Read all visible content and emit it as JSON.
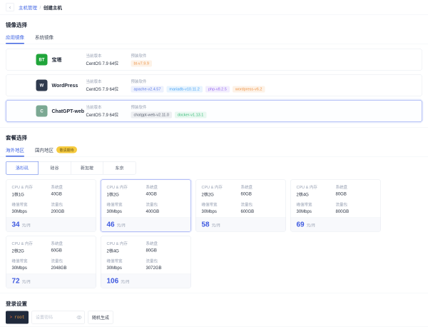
{
  "colors": {
    "accent": "#4468e4",
    "price": "#3f5ae0",
    "selected": "#7388ef"
  },
  "badge_colors": {
    "orange": {
      "bg": "#fdf2e7",
      "fg": "#ee9549"
    },
    "indigo": {
      "bg": "#edf1fd",
      "fg": "#5e7ce8"
    },
    "blue": {
      "bg": "#e8f4fe",
      "fg": "#47a3f5"
    },
    "purple": {
      "bg": "#f2edfd",
      "fg": "#9a6ef0"
    },
    "gray": {
      "bg": "#edeff2",
      "fg": "#596070"
    },
    "green": {
      "bg": "#e8f8f0",
      "fg": "#3dbd7d"
    },
    "yellow": {
      "bg": "#f6cb3f",
      "fg": "#6d5716"
    }
  },
  "breadcrumb": {
    "back_icon": "‹",
    "parent": "主机管理",
    "separator": "/",
    "current": "创建主机"
  },
  "image_section": {
    "title": "镜像选择",
    "tabs": [
      {
        "key": "app-image",
        "label": "应用镜像",
        "active": true
      },
      {
        "key": "system-image",
        "label": "系统镜像",
        "active": false
      }
    ],
    "labels": {
      "version": "当前版本",
      "software": "预装软件"
    },
    "images": [
      {
        "key": "baota",
        "name": "宝塔",
        "icon_name": "baota-icon",
        "icon_text": "BT",
        "icon_bg": "#20a53a",
        "icon_fg": "#ffffff",
        "version": "CentOS 7.9 64位",
        "selected": false,
        "badges": [
          {
            "text": "bt-v7.9.9",
            "color": "orange"
          }
        ]
      },
      {
        "key": "wordpress",
        "name": "WordPress",
        "icon_name": "wordpress-icon",
        "icon_text": "W",
        "icon_bg": "#2f3a4d",
        "icon_fg": "#ffffff",
        "version": "CentOS 7.9 64位",
        "selected": false,
        "badges": [
          {
            "text": "apache-v2.4.57",
            "color": "indigo"
          },
          {
            "text": "mariadb-v10.11.2",
            "color": "blue"
          },
          {
            "text": "php-v8.2.5",
            "color": "purple"
          },
          {
            "text": "wordpress-v6.2",
            "color": "orange"
          }
        ]
      },
      {
        "key": "chatgpt-web",
        "name": "ChatGPT-web",
        "icon_name": "chatgpt-icon",
        "icon_text": "C",
        "icon_bg": "#7ba893",
        "icon_fg": "#ffffff",
        "version": "CentOS 7.9 64位",
        "selected": true,
        "badges": [
          {
            "text": "chatgpt-web-v2.11.0",
            "color": "gray"
          },
          {
            "text": "docker-v1.13.1",
            "color": "green"
          }
        ]
      }
    ]
  },
  "plan_section": {
    "title": "套餐选择",
    "tabs": [
      {
        "key": "overseas",
        "label": "海外地区",
        "active": true
      },
      {
        "key": "domestic",
        "label": "国内地区",
        "active": false,
        "badge": "敬请期待"
      }
    ],
    "regions": [
      {
        "key": "los-angeles",
        "label": "洛杉矶",
        "selected": true
      },
      {
        "key": "silicon-valley",
        "label": "硅谷",
        "selected": false
      },
      {
        "key": "singapore",
        "label": "新加坡",
        "selected": false
      },
      {
        "key": "tokyo",
        "label": "东京",
        "selected": false
      }
    ],
    "labels": {
      "cpu": "CPU & 内存",
      "disk": "系统盘",
      "bandwidth": "峰值带宽",
      "traffic": "流量包",
      "unit": "元/月"
    },
    "plans": [
      {
        "cpu": "1核1G",
        "disk": "40GB",
        "bandwidth": "30Mbps",
        "traffic": "200GB",
        "price": "34",
        "selected": false
      },
      {
        "cpu": "1核2G",
        "disk": "40GB",
        "bandwidth": "30Mbps",
        "traffic": "400GB",
        "price": "46",
        "selected": true
      },
      {
        "cpu": "2核2G",
        "disk": "60GB",
        "bandwidth": "30Mbps",
        "traffic": "600GB",
        "price": "58",
        "selected": false
      },
      {
        "cpu": "2核4G",
        "disk": "80GB",
        "bandwidth": "30Mbps",
        "traffic": "800GB",
        "price": "69",
        "selected": false
      },
      {
        "cpu": "2核2G",
        "disk": "60GB",
        "bandwidth": "30Mbps",
        "traffic": "2048GB",
        "price": "72",
        "selected": false
      },
      {
        "cpu": "2核4G",
        "disk": "80GB",
        "bandwidth": "30Mbps",
        "traffic": "3072GB",
        "price": "106",
        "selected": false
      }
    ]
  },
  "login_section": {
    "title": "登录设置",
    "prompt": ">",
    "username": "root",
    "password_placeholder": "设置密码",
    "generate_label": "随机生成"
  }
}
